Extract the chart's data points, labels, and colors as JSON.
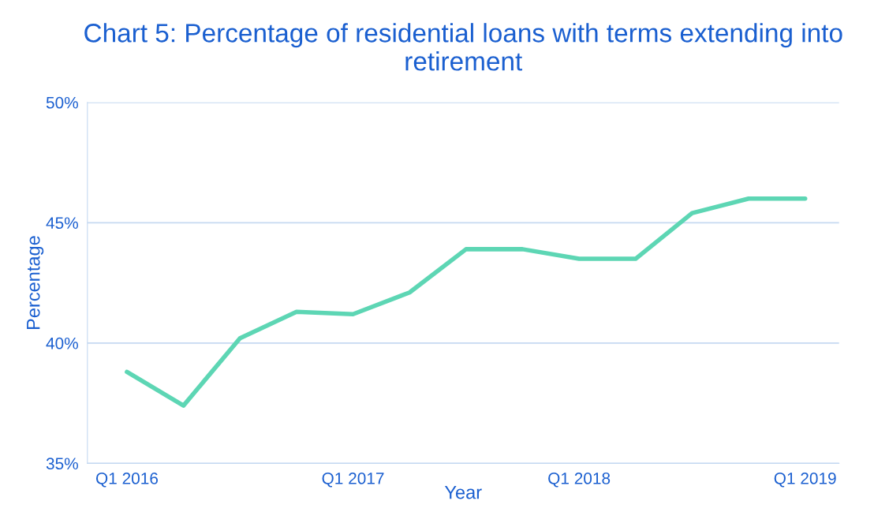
{
  "chart_data": {
    "type": "line",
    "title": "Chart 5: Percentage of residential loans with terms extending into retirement",
    "xlabel": "Year",
    "ylabel": "Percentage",
    "categories": [
      "Q1 2016",
      null,
      null,
      null,
      "Q1 2017",
      null,
      null,
      null,
      "Q1 2018",
      null,
      null,
      null,
      "Q1 2019"
    ],
    "series": [
      {
        "color": "#5dd6b4",
        "values": [
          38.8,
          37.4,
          40.2,
          41.3,
          41.2,
          42.1,
          43.9,
          43.9,
          43.5,
          43.5,
          45.4,
          46.0,
          46.0
        ]
      }
    ],
    "ylim": [
      35,
      50
    ],
    "yticks": [
      {
        "value": 35,
        "label": "35%"
      },
      {
        "value": 40,
        "label": "40%"
      },
      {
        "value": 45,
        "label": "45%"
      },
      {
        "value": 50,
        "label": "50%"
      }
    ],
    "grid": "y",
    "marker": "none",
    "line_style": "solid"
  }
}
